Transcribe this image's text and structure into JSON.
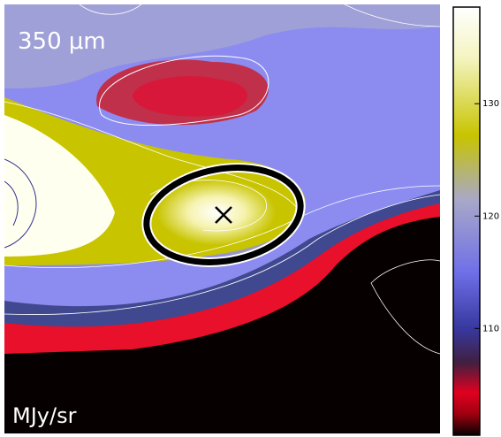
{
  "chart_data": {
    "type": "image",
    "label": "350 μm",
    "unit": "MJy/sr",
    "clim": [
      100.5,
      138.6
    ],
    "cticks": [
      110,
      120,
      130
    ]
  }
}
